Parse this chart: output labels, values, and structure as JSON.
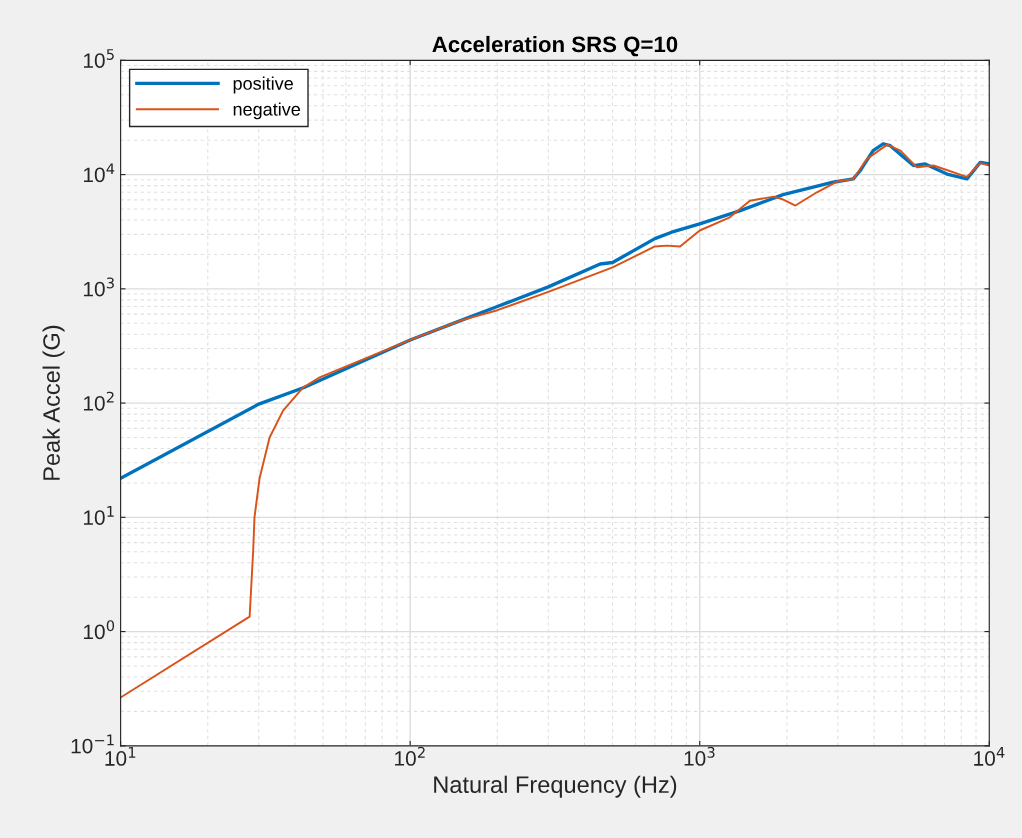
{
  "chart_data": {
    "type": "line",
    "title": "Acceleration SRS Q=10",
    "xlabel": "Natural Frequency (Hz)",
    "ylabel": "Peak Accel (G)",
    "log": "xy",
    "grid": true,
    "legend": "top left",
    "line_style": "solid",
    "marker": "none",
    "xlim": [
      10,
      10000
    ],
    "ylim": [
      0.1,
      100000
    ],
    "xticks": [
      {
        "value": 10,
        "label": "10$^{1}$"
      },
      {
        "value": 100,
        "label": "10$^{2}$"
      },
      {
        "value": 1000,
        "label": "10$^{3}$"
      },
      {
        "value": 10000,
        "label": "10$^{4}$"
      }
    ],
    "yticks": [
      {
        "value": 0.1,
        "label": "10$^{−1}$"
      },
      {
        "value": 1,
        "label": "10$^{0}$"
      },
      {
        "value": 10,
        "label": "10$^{1}$"
      },
      {
        "value": 100,
        "label": "10$^{2}$"
      },
      {
        "value": 1000,
        "label": "10$^{3}$"
      },
      {
        "value": 10000,
        "label": "10$^{4}$"
      },
      {
        "value": 100000,
        "label": "10$^{5}$"
      }
    ],
    "series": [
      {
        "name": "positive",
        "color": "#0072bd",
        "x": [
          10,
          30,
          43,
          100,
          150,
          200,
          300,
          453,
          500,
          700,
          800,
          1000,
          1380,
          1940,
          2890,
          3390,
          3580,
          3970,
          4300,
          4550,
          5470,
          6010,
          7140,
          8370,
          9310,
          10000
        ],
        "values": [
          22,
          98,
          137,
          357,
          530,
          700,
          1040,
          1650,
          1700,
          2750,
          3130,
          3700,
          4840,
          6680,
          8570,
          9160,
          10800,
          16200,
          18600,
          17900,
          12000,
          12400,
          10100,
          9160,
          12800,
          12400
        ]
      },
      {
        "name": "negative",
        "color": "#d95319",
        "x": [
          10,
          27.9,
          28.7,
          29,
          30.2,
          32.7,
          36.4,
          42.7,
          48.7,
          100,
          150,
          200,
          300,
          453,
          500,
          700,
          769,
          855,
          1000,
          1270,
          1490,
          1800,
          1920,
          2140,
          2540,
          2980,
          3390,
          3780,
          4440,
          4930,
          5620,
          6420,
          8370,
          9310,
          10000
        ],
        "values": [
          0.265,
          1.35,
          5.1,
          10,
          22,
          50,
          86,
          137,
          168,
          357,
          530,
          650,
          940,
          1400,
          1540,
          2350,
          2390,
          2350,
          3240,
          4230,
          5910,
          6410,
          6120,
          5360,
          7000,
          8690,
          9160,
          13700,
          18300,
          16200,
          11600,
          12000,
          9550,
          12600,
          12000
        ]
      }
    ]
  }
}
